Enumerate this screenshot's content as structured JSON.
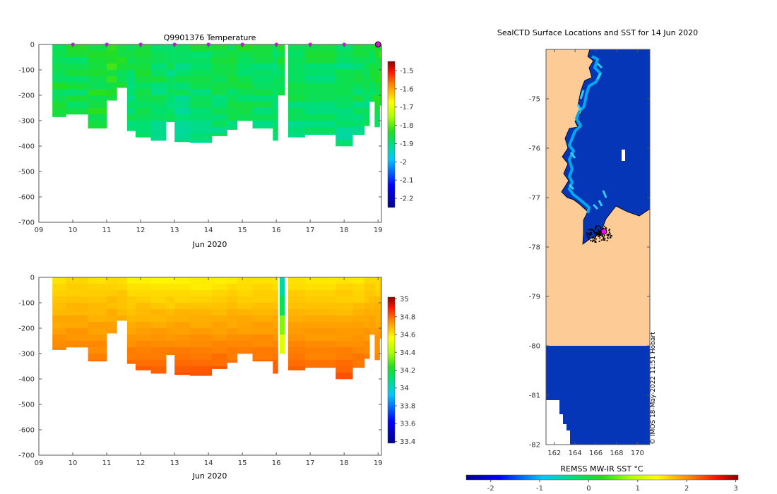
{
  "chart_data": [
    {
      "type": "heatmap",
      "title": "Q9901376  Temperature",
      "xlabel": "Jun 2020",
      "x_ticks": [
        9,
        10,
        11,
        12,
        13,
        14,
        15,
        16,
        17,
        18,
        19
      ],
      "x_tick_labels": [
        "09",
        "10",
        "11",
        "12",
        "13",
        "14",
        "15",
        "16",
        "17",
        "18",
        "19"
      ],
      "xlim": [
        9,
        19.1
      ],
      "ylim": [
        -700,
        0
      ],
      "y_ticks": [
        0,
        -100,
        -200,
        -300,
        -400,
        -500,
        -600,
        -700
      ],
      "colorbar": {
        "range": [
          -2.25,
          -1.45
        ],
        "ticks": [
          -1.5,
          -1.6,
          -1.7,
          -1.8,
          -1.9,
          -2,
          -2.1,
          -2.2
        ],
        "tick_labels": [
          "-1.5",
          "-1.6",
          "-1.7",
          "-1.8",
          "-1.9",
          "-2",
          "-2.1",
          "-2.2"
        ]
      },
      "markers_color": "#ff00ff",
      "surface_markers_days": [
        10,
        11,
        12,
        13,
        14,
        15,
        16,
        17,
        18
      ],
      "last_marker_day": 19,
      "profiles": [
        {
          "t0": 9.4,
          "t1": 9.8,
          "depth": 285,
          "value": -1.85
        },
        {
          "t0": 9.8,
          "t1": 10.45,
          "depth": 275,
          "value": -1.86
        },
        {
          "t0": 10.45,
          "t1": 11.0,
          "depth": 330,
          "value": -1.84
        },
        {
          "t0": 11.0,
          "t1": 11.3,
          "depth": 220,
          "value": -1.83
        },
        {
          "t0": 11.3,
          "t1": 11.6,
          "depth": 170,
          "value": -1.85
        },
        {
          "t0": 11.6,
          "t1": 11.85,
          "depth": 340,
          "value": -1.87
        },
        {
          "t0": 11.85,
          "t1": 12.3,
          "depth": 365,
          "value": -1.86
        },
        {
          "t0": 12.3,
          "t1": 12.75,
          "depth": 378,
          "value": -1.87
        },
        {
          "t0": 12.75,
          "t1": 13.0,
          "depth": 305,
          "value": -1.88
        },
        {
          "t0": 13.0,
          "t1": 13.45,
          "depth": 383,
          "value": -1.88
        },
        {
          "t0": 13.45,
          "t1": 14.1,
          "depth": 387,
          "value": -1.87
        },
        {
          "t0": 14.1,
          "t1": 14.55,
          "depth": 360,
          "value": -1.87
        },
        {
          "t0": 14.55,
          "t1": 14.85,
          "depth": 335,
          "value": -1.86
        },
        {
          "t0": 14.85,
          "t1": 15.3,
          "depth": 300,
          "value": -1.86
        },
        {
          "t0": 15.3,
          "t1": 15.9,
          "depth": 330,
          "value": -1.87
        },
        {
          "t0": 15.9,
          "t1": 16.05,
          "depth": 378,
          "value": -1.88
        },
        {
          "t0": 16.05,
          "t1": 16.25,
          "depth": 200,
          "value": -1.86
        },
        {
          "t0": 16.35,
          "t1": 16.85,
          "depth": 365,
          "value": -1.87
        },
        {
          "t0": 16.85,
          "t1": 17.75,
          "depth": 355,
          "value": -1.87
        },
        {
          "t0": 17.75,
          "t1": 18.25,
          "depth": 400,
          "value": -1.88
        },
        {
          "t0": 18.25,
          "t1": 18.6,
          "depth": 355,
          "value": -1.87
        },
        {
          "t0": 18.6,
          "t1": 18.75,
          "depth": 320,
          "value": -1.87
        },
        {
          "t0": 18.75,
          "t1": 18.9,
          "depth": 225,
          "value": -1.86
        },
        {
          "t0": 18.9,
          "t1": 19.05,
          "depth": 325,
          "value": -1.84
        },
        {
          "t0": 19.05,
          "t1": 19.1,
          "depth": 240,
          "value": -1.83
        }
      ]
    },
    {
      "type": "heatmap",
      "title": "",
      "xlabel": "Jun 2020",
      "x_ticks": [
        9,
        10,
        11,
        12,
        13,
        14,
        15,
        16,
        17,
        18,
        19
      ],
      "x_tick_labels": [
        "09",
        "10",
        "11",
        "12",
        "13",
        "14",
        "15",
        "16",
        "17",
        "18",
        "19"
      ],
      "xlim": [
        9,
        19.1
      ],
      "ylim": [
        -700,
        0
      ],
      "y_ticks": [
        0,
        -100,
        -200,
        -300,
        -400,
        -500,
        -600,
        -700
      ],
      "colorbar": {
        "range": [
          33.38,
          35.02
        ],
        "ticks": [
          35,
          34.8,
          34.6,
          34.4,
          34.2,
          34,
          33.8,
          33.6,
          33.4
        ],
        "tick_labels": [
          "35",
          "34.8",
          "34.6",
          "34.4",
          "34.2",
          "34",
          "33.8",
          "33.6",
          "33.4"
        ]
      },
      "anomaly_profile": {
        "t0": 16.1,
        "t1": 16.25,
        "depth": 300,
        "values_top_to_bottom": [
          34.05,
          34.15,
          34.35,
          34.5
        ]
      },
      "profiles": [
        {
          "t0": 9.4,
          "t1": 9.8,
          "depth": 285,
          "surface": 34.62,
          "bottom": 34.76
        },
        {
          "t0": 9.8,
          "t1": 10.45,
          "depth": 275,
          "surface": 34.62,
          "bottom": 34.76
        },
        {
          "t0": 10.45,
          "t1": 11.0,
          "depth": 330,
          "surface": 34.62,
          "bottom": 34.78
        },
        {
          "t0": 11.0,
          "t1": 11.3,
          "depth": 220,
          "surface": 34.62,
          "bottom": 34.74
        },
        {
          "t0": 11.3,
          "t1": 11.6,
          "depth": 170,
          "surface": 34.62,
          "bottom": 34.7
        },
        {
          "t0": 11.6,
          "t1": 11.85,
          "depth": 340,
          "surface": 34.58,
          "bottom": 34.8
        },
        {
          "t0": 11.85,
          "t1": 12.3,
          "depth": 365,
          "surface": 34.58,
          "bottom": 34.82
        },
        {
          "t0": 12.3,
          "t1": 12.75,
          "depth": 378,
          "surface": 34.58,
          "bottom": 34.83
        },
        {
          "t0": 12.75,
          "t1": 13.0,
          "depth": 305,
          "surface": 34.58,
          "bottom": 34.78
        },
        {
          "t0": 13.0,
          "t1": 13.45,
          "depth": 383,
          "surface": 34.58,
          "bottom": 34.84
        },
        {
          "t0": 13.45,
          "t1": 14.1,
          "depth": 387,
          "surface": 34.58,
          "bottom": 34.84
        },
        {
          "t0": 14.1,
          "t1": 14.55,
          "depth": 360,
          "surface": 34.58,
          "bottom": 34.82
        },
        {
          "t0": 14.55,
          "t1": 14.85,
          "depth": 335,
          "surface": 34.6,
          "bottom": 34.8
        },
        {
          "t0": 14.85,
          "t1": 15.3,
          "depth": 300,
          "surface": 34.6,
          "bottom": 34.78
        },
        {
          "t0": 15.3,
          "t1": 15.9,
          "depth": 330,
          "surface": 34.6,
          "bottom": 34.8
        },
        {
          "t0": 15.9,
          "t1": 16.05,
          "depth": 378,
          "surface": 34.6,
          "bottom": 34.82
        },
        {
          "t0": 16.35,
          "t1": 16.85,
          "depth": 365,
          "surface": 34.6,
          "bottom": 34.82
        },
        {
          "t0": 16.85,
          "t1": 17.75,
          "depth": 355,
          "surface": 34.6,
          "bottom": 34.8
        },
        {
          "t0": 17.75,
          "t1": 18.25,
          "depth": 400,
          "surface": 34.6,
          "bottom": 34.83
        },
        {
          "t0": 18.25,
          "t1": 18.6,
          "depth": 355,
          "surface": 34.6,
          "bottom": 34.8
        },
        {
          "t0": 18.6,
          "t1": 18.75,
          "depth": 320,
          "surface": 34.62,
          "bottom": 34.78
        },
        {
          "t0": 18.75,
          "t1": 18.9,
          "depth": 225,
          "surface": 34.62,
          "bottom": 34.74
        },
        {
          "t0": 18.9,
          "t1": 19.05,
          "depth": 325,
          "surface": 34.62,
          "bottom": 34.78
        },
        {
          "t0": 19.05,
          "t1": 19.1,
          "depth": 240,
          "surface": 34.64,
          "bottom": 34.75
        }
      ]
    },
    {
      "type": "heatmap",
      "title": "SealCTD Surface Locations and SST for 14 Jun 2020",
      "xlabel": "",
      "colorbar_label": "REMSS MW-IR SST °C",
      "x_ticks": [
        162,
        164,
        166,
        168,
        170
      ],
      "x_tick_labels": [
        "162",
        "164",
        "166",
        "168",
        "170"
      ],
      "xlim": [
        161.2,
        171.2
      ],
      "y_ticks": [
        -75,
        -76,
        -77,
        -78,
        -79,
        -80,
        -81,
        -82
      ],
      "y_tick_labels": [
        "-75",
        "-76",
        "-77",
        "-78",
        "-79",
        "-80",
        "-81",
        "-82"
      ],
      "ylim": [
        -82,
        -74
      ],
      "colorbar": {
        "range": [
          -2.5,
          3.05
        ],
        "ticks": [
          -2,
          -1,
          0,
          1,
          2,
          3
        ],
        "tick_labels": [
          "-2",
          "-1",
          "0",
          "1",
          "2",
          "3"
        ]
      },
      "land_color": "#fdcb96",
      "ocean_color": "#0536b8",
      "latest_position": {
        "lon": 166.55,
        "lat": -77.7
      },
      "credit": "© IMOS 18-May-2022 11:51 Hobart"
    }
  ]
}
